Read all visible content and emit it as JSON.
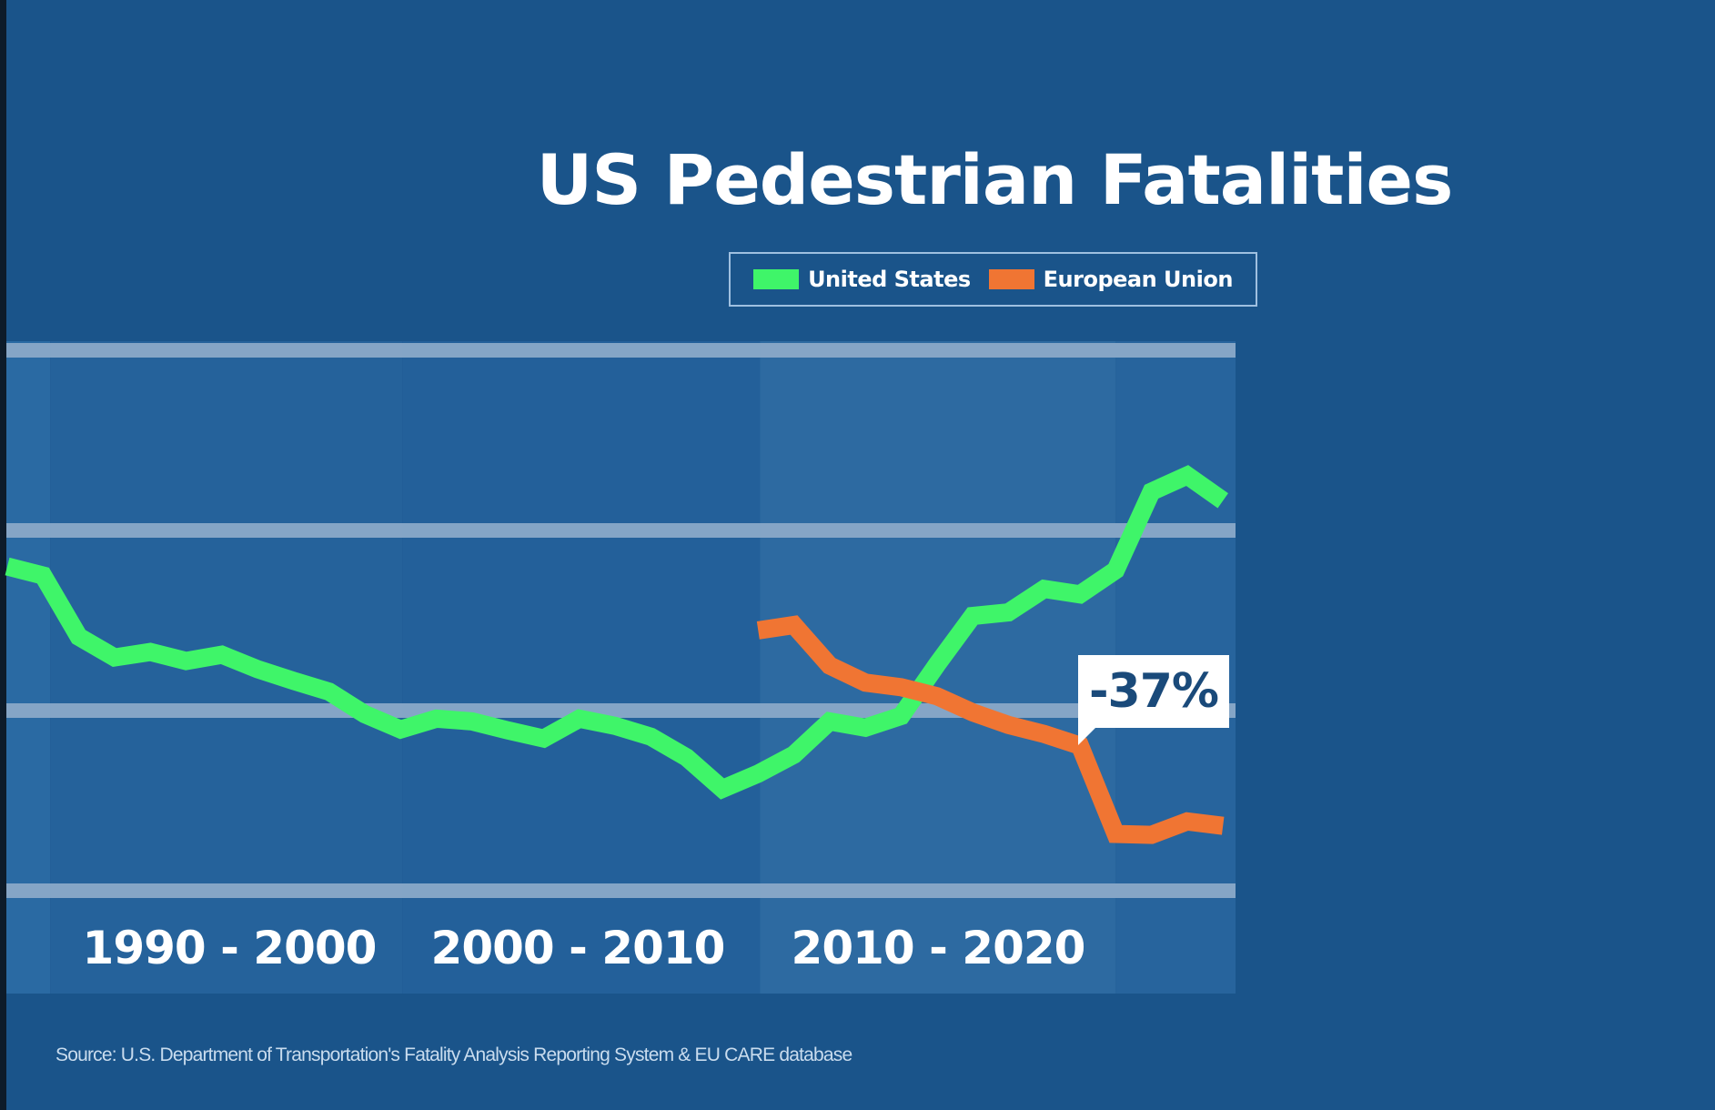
{
  "colors": {
    "background": "#1a548a",
    "gridline": "#8aa9c8",
    "us_line": "#3ff569",
    "eu_line": "#f07533",
    "callout_text": "#1a4a7a"
  },
  "chart_data": {
    "type": "line",
    "title": "US Pedestrian Fatalities",
    "xlabel": "",
    "ylabel": "",
    "y_gridlines": [
      3000,
      5000,
      7000,
      9000
    ],
    "ylim": [
      3000,
      9000
    ],
    "xlim": [
      1989,
      2023
    ],
    "grid": true,
    "legend_position": "top-center",
    "x_period_labels": [
      "1990 - 2000",
      "2000 - 2010",
      "2010 - 2020"
    ],
    "series": [
      {
        "name": "United States",
        "color": "#3ff569",
        "x": [
          1989,
          1990,
          1991,
          1992,
          1993,
          1994,
          1995,
          1996,
          1997,
          1998,
          1999,
          2000,
          2001,
          2002,
          2003,
          2004,
          2005,
          2006,
          2007,
          2008,
          2009,
          2010,
          2011,
          2012,
          2013,
          2014,
          2015,
          2016,
          2017,
          2018,
          2019,
          2020,
          2021,
          2022,
          2023
        ],
        "values": [
          6600,
          6500,
          5820,
          5590,
          5650,
          5550,
          5620,
          5460,
          5330,
          5210,
          4960,
          4790,
          4910,
          4880,
          4780,
          4690,
          4910,
          4830,
          4710,
          4480,
          4130,
          4300,
          4510,
          4880,
          4810,
          4940,
          5510,
          6050,
          6090,
          6350,
          6290,
          6560,
          7430,
          7610,
          7330
        ]
      },
      {
        "name": "European Union",
        "color": "#f07533",
        "x": [
          2010,
          2011,
          2012,
          2013,
          2014,
          2015,
          2016,
          2017,
          2018,
          2019,
          2020,
          2021,
          2022,
          2023
        ],
        "values": [
          5890,
          5950,
          5500,
          5310,
          5260,
          5160,
          4980,
          4840,
          4740,
          4610,
          3630,
          3620,
          3770,
          3720
        ]
      }
    ],
    "annotations": [
      {
        "text": "-37%",
        "series": "European Union",
        "x": 2019
      }
    ]
  },
  "legend": {
    "items": [
      {
        "label": "United States",
        "color": "#3ff569"
      },
      {
        "label": "European Union",
        "color": "#f07533"
      }
    ]
  },
  "source_text": "Source: U.S. Department of Transportation's Fatality Analysis Reporting System & EU CARE database"
}
